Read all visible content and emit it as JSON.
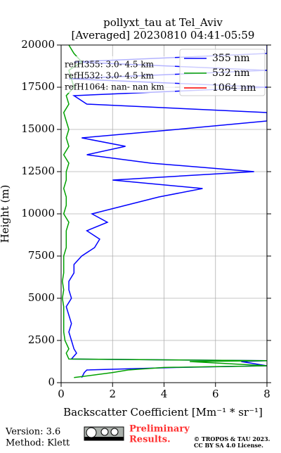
{
  "chart_data": {
    "type": "line",
    "title": [
      "pollyxt_tau at Tel_Aviv",
      "[Averaged] 20230810 04:41-05:59"
    ],
    "x_label": "Backscatter Coefficient [Mm⁻¹ * sr⁻¹]",
    "y_label": "Height (m)",
    "xlim": [
      0,
      8
    ],
    "xticks": [
      0,
      2,
      4,
      6,
      8
    ],
    "ylim": [
      0,
      20000
    ],
    "yticks": [
      0,
      2500,
      5000,
      7500,
      10000,
      12500,
      15000,
      17500,
      20000
    ],
    "grid": true,
    "legend": "upper-right",
    "y": [
      300,
      600,
      750,
      900,
      1000,
      1250,
      1300,
      1400,
      1750,
      2000,
      2500,
      3000,
      3500,
      4000,
      4500,
      5000,
      5500,
      6000,
      6500,
      7000,
      7500,
      8000,
      8500,
      9000,
      9500,
      10000,
      10500,
      11000,
      11500,
      12000,
      12500,
      13000,
      13500,
      14000,
      14500,
      15000,
      15500,
      16000,
      16500,
      17000,
      17500,
      18000,
      18500,
      19000,
      19500,
      20000
    ],
    "series": [
      {
        "name": "355 nm",
        "color": "#0000ff",
        "values": [
          0.8,
          0.9,
          1.0,
          4.5,
          8,
          7,
          8,
          0.4,
          0.6,
          0.5,
          0.4,
          0.3,
          0.4,
          0.3,
          0.2,
          0.4,
          0.3,
          0.3,
          0.5,
          0.5,
          0.8,
          1.3,
          1.5,
          1.0,
          1.8,
          1.2,
          2.5,
          3.8,
          5.5,
          2.0,
          7.5,
          3.5,
          1.0,
          2.5,
          0.8,
          4.5,
          8,
          8,
          1.0,
          0.5,
          8,
          0.3,
          8,
          0.5,
          8,
          8
        ]
      },
      {
        "name": "532 nm",
        "color": "#00a000",
        "values": [
          0.5,
          2.0,
          2.6,
          4.0,
          8,
          5,
          8,
          0.3,
          0.2,
          0.3,
          0.15,
          0.1,
          0.1,
          0.1,
          0.1,
          0.05,
          0.1,
          0.05,
          0.1,
          0.1,
          0.1,
          0.2,
          0.2,
          0.2,
          0.3,
          0.1,
          0.2,
          0.2,
          0.1,
          0.2,
          0.2,
          0.3,
          0.1,
          0.3,
          0.2,
          0.3,
          0.2,
          0.1,
          0.3,
          0.2,
          0.5,
          0.4,
          0.3,
          0.8,
          0.5,
          0.3
        ]
      },
      {
        "name": "1064 nm",
        "color": "#ff0000",
        "values": [
          null,
          null,
          null,
          null,
          null,
          null,
          null,
          null,
          null,
          null,
          null,
          null,
          null,
          null,
          null,
          null,
          null,
          null,
          null,
          null,
          null,
          null,
          null,
          null,
          null,
          null,
          null,
          null,
          null,
          null,
          null,
          null,
          null,
          null,
          null,
          null,
          null,
          null,
          null,
          null,
          null,
          null,
          null,
          null,
          null,
          null
        ]
      }
    ],
    "annotations": [
      "refH355:  3.0- 4.5 km",
      "refH532:  3.0- 4.5 km",
      "refH1064:  nan- nan km"
    ]
  },
  "footer": {
    "version": "Version: 3.6",
    "method": "Method: Klett",
    "status": [
      "Preliminary",
      "Results."
    ],
    "license": [
      "© TROPOS & TAU 2023.",
      "CC BY SA 4.0 License."
    ]
  }
}
